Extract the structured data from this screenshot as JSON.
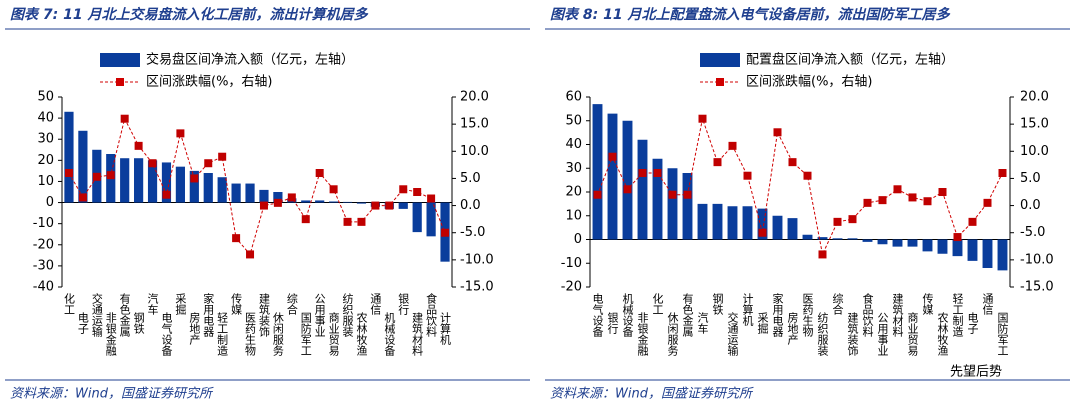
{
  "chart_data": [
    {
      "type": "bar-line",
      "title": "图表 7:  11 月北上交易盘流入化工居前，流出计算机居多",
      "categories": [
        "化工",
        "电子",
        "交通运输",
        "非银金融",
        "有色金属",
        "钢铁",
        "汽车",
        "电气设备",
        "采掘",
        "房地产",
        "家用电器",
        "轻工制造",
        "传媒",
        "医药生物",
        "建筑装饰",
        "休闲服务",
        "综合",
        "国防军工",
        "公用事业",
        "商业贸易",
        "纺织服装",
        "农林牧渔",
        "通信",
        "机械设备",
        "银行",
        "建筑材料",
        "食品饮料",
        "计算机"
      ],
      "series": [
        {
          "name": "交易盘区间净流入额（亿元，左轴）",
          "color": "#0a3d9c",
          "type": "bar",
          "values": [
            43,
            34,
            25,
            23,
            21,
            21,
            20,
            19,
            17,
            15,
            14,
            12,
            9,
            9,
            6,
            5,
            2,
            1,
            1,
            0.5,
            0.3,
            -0.5,
            -2,
            -3,
            -3,
            -14,
            -16,
            -28
          ]
        },
        {
          "name": "区间涨跌幅(%，右轴)",
          "color": "#d00000",
          "type": "line",
          "axis": "y2",
          "values": [
            6,
            1.5,
            5.3,
            5.6,
            16,
            11,
            7.8,
            2,
            13.3,
            5,
            7.8,
            9,
            -6,
            -9,
            0,
            0.5,
            1.5,
            -2.5,
            6,
            3,
            -3,
            -3,
            0,
            0,
            3,
            2.5,
            1.3,
            -5
          ]
        }
      ],
      "ylim": [
        -40,
        50
      ],
      "yticks": [
        50,
        40,
        30,
        20,
        10,
        0,
        -10,
        -20,
        -30,
        -40
      ],
      "y2lim": [
        -15,
        20
      ],
      "y2ticks": [
        {
          "value": 20,
          "label": "20.0"
        },
        {
          "value": 15,
          "label": "15.0"
        },
        {
          "value": 10,
          "label": "10.0"
        },
        {
          "value": 5,
          "label": "5.0"
        },
        {
          "value": 0,
          "label": "0.0"
        },
        {
          "value": -5,
          "label": "-5.0"
        },
        {
          "value": -10,
          "label": "-10.0"
        },
        {
          "value": -15,
          "label": "-15.0"
        }
      ],
      "source": "资料来源：Wind，国盛证券研究所"
    },
    {
      "type": "bar-line",
      "title": "图表 8:  11 月北上配置盘流入电气设备居前，流出国防军工居多",
      "categories": [
        "电气设备",
        "银行",
        "机械设备",
        "非银金融",
        "化工",
        "休闲服务",
        "有色金属",
        "汽车",
        "钢铁",
        "交通运输",
        "计算机",
        "采掘",
        "家用电器",
        "房地产",
        "医药生物",
        "纺织服装",
        "综合",
        "建筑装饰",
        "食品饮料",
        "公用事业",
        "建筑材料",
        "商业贸易",
        "传媒",
        "农林牧渔",
        "轻工制造",
        "电子",
        "通信",
        "国防军工"
      ],
      "series": [
        {
          "name": "配置盘区间净流入额（亿元，左轴）",
          "color": "#0a3d9c",
          "type": "bar",
          "values": [
            57,
            53,
            50,
            42,
            34,
            30,
            28,
            15,
            15,
            14,
            14,
            13,
            10,
            9,
            2,
            1,
            0.5,
            0.5,
            -1,
            -2,
            -3,
            -3,
            -5,
            -6,
            -7,
            -9,
            -12,
            -13
          ]
        },
        {
          "name": "区间涨跌幅(%，右轴)",
          "color": "#d00000",
          "type": "line",
          "axis": "y2",
          "values": [
            2,
            9,
            3,
            6,
            6,
            2,
            2,
            16,
            8,
            11,
            5.5,
            -5,
            13.5,
            8,
            5.5,
            -9,
            -3,
            -2.5,
            0.5,
            1,
            3,
            1.5,
            0.8,
            2.5,
            -5.8,
            -3,
            0.5,
            6
          ]
        }
      ],
      "ylim": [
        -20,
        60
      ],
      "yticks": [
        60,
        50,
        40,
        30,
        20,
        10,
        0,
        -10,
        -20
      ],
      "y2lim": [
        -15,
        20
      ],
      "y2ticks": [
        {
          "value": 20,
          "label": "20.0"
        },
        {
          "value": 15,
          "label": "15.0"
        },
        {
          "value": 10,
          "label": "10.0"
        },
        {
          "value": 5,
          "label": "5.0"
        },
        {
          "value": 0,
          "label": "0.0"
        },
        {
          "value": -5,
          "label": "-5.0"
        },
        {
          "value": -10,
          "label": "-10.0"
        },
        {
          "value": -15,
          "label": "-15.0"
        }
      ],
      "source": "资料来源：Wind，国盛证券研究所",
      "watermark": "先望后势"
    }
  ]
}
